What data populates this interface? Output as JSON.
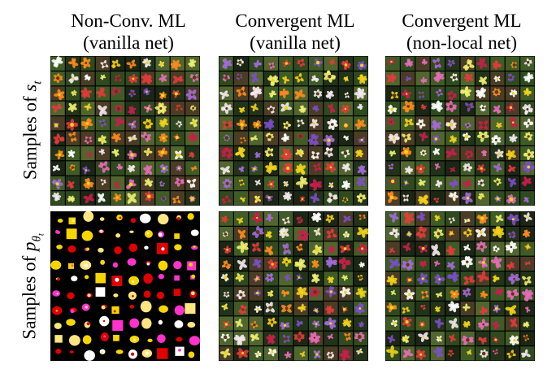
{
  "columns": [
    {
      "line1": "Non-Conv. ML",
      "line2": "(vanilla net)"
    },
    {
      "line1": "Convergent ML",
      "line2": "(vanilla net)"
    },
    {
      "line1": "Convergent ML",
      "line2": "(non-local net)"
    }
  ],
  "rows": [
    {
      "prefix": "Samples of ",
      "symbol": "s",
      "sub": "t"
    },
    {
      "prefix": "Samples of ",
      "symbol": "p",
      "sub": "θ",
      "subsub": "t"
    }
  ],
  "palette": {
    "flowers": [
      "#e23b3b",
      "#f2d21a",
      "#ffffff",
      "#a36ad8",
      "#e86bb8",
      "#ff8a1e",
      "#c61f4a",
      "#f5e9f0",
      "#7b4fc8",
      "#f0f070"
    ],
    "leaves": [
      "#2f4a1f",
      "#3f5c26",
      "#22331a",
      "#51652e",
      "#1c2615",
      "#4a3d26"
    ],
    "cutout": [
      "#ffffff",
      "#f7d600",
      "#e00000",
      "#ff33cc",
      "#ffe680"
    ]
  }
}
